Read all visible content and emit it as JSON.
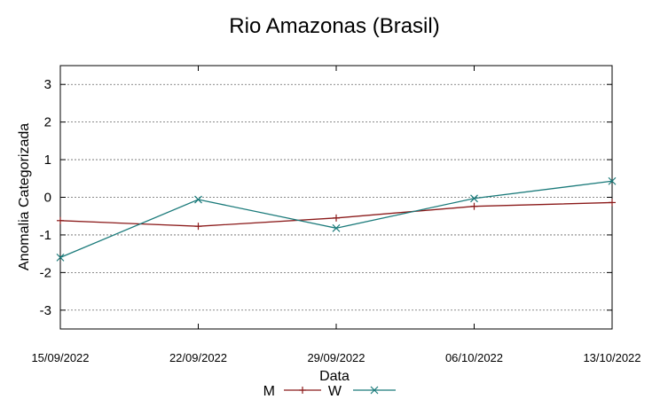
{
  "chart_data": {
    "type": "line",
    "title": "Rio Amazonas (Brasil)",
    "xlabel": "Data",
    "ylabel": "Anomalia Categorizada",
    "categories": [
      "15/09/2022",
      "22/09/2022",
      "29/09/2022",
      "06/10/2022",
      "13/10/2022"
    ],
    "ylim": [
      -3.5,
      3.5
    ],
    "yticks": [
      -3,
      -2,
      -1,
      0,
      1,
      2,
      3
    ],
    "ytick_labels": [
      "-3",
      "-2",
      "-1",
      "0",
      "1",
      "2",
      "3"
    ],
    "grid": true,
    "legend_position": "bottom-center",
    "series": [
      {
        "name": "M",
        "color": "#8b1a1a",
        "marker": "plus",
        "values": [
          -0.62,
          -0.77,
          -0.55,
          -0.24,
          -0.14
        ]
      },
      {
        "name": "W",
        "color": "#1a7a7a",
        "marker": "x",
        "values": [
          -1.6,
          -0.06,
          -0.82,
          -0.03,
          0.43
        ]
      }
    ]
  }
}
